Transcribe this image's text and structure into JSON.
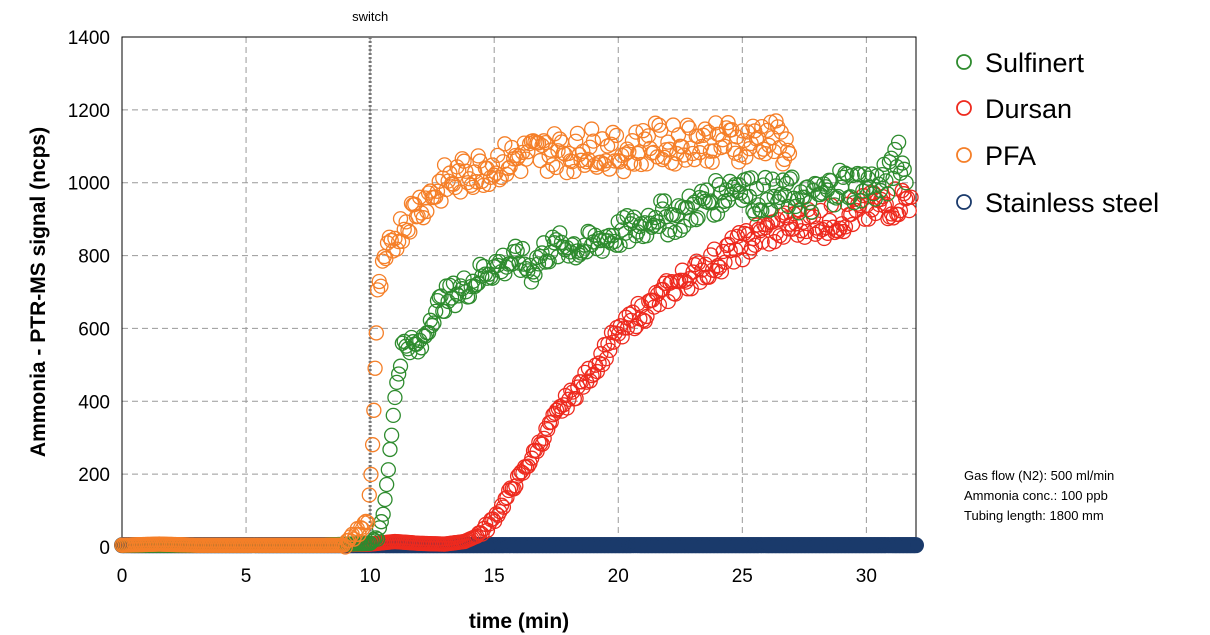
{
  "chart_data": {
    "type": "scatter",
    "xlabel": "time (min)",
    "ylabel": "Ammonia - PTR-MS signal (ncps)",
    "xlim": [
      0,
      32
    ],
    "ylim": [
      0,
      1400
    ],
    "xticks": [
      0,
      5,
      10,
      15,
      20,
      25,
      30
    ],
    "yticks": [
      0,
      200,
      400,
      600,
      800,
      1000,
      1200,
      1400
    ],
    "xtick_labels": [
      "0",
      "5",
      "10",
      "15",
      "20",
      "25",
      "30"
    ],
    "ytick_labels": [
      "0",
      "200",
      "400",
      "600",
      "800",
      "1000",
      "1200",
      "1400"
    ],
    "grid": true,
    "legend_position": "right",
    "vline": {
      "x": 10,
      "label": "switch"
    },
    "annotations": [
      "Gas flow (N2): 500 ml/min",
      "Ammonia conc.: 100 ppb",
      "Tubing length: 1800 mm"
    ],
    "series": [
      {
        "name": "Sulfinert",
        "color": "#2e8b2e",
        "points": [
          [
            0,
            5
          ],
          [
            2,
            5
          ],
          [
            4,
            5
          ],
          [
            6,
            5
          ],
          [
            8,
            5
          ],
          [
            10,
            10
          ],
          [
            10.3,
            30
          ],
          [
            10.6,
            120
          ],
          [
            10.8,
            260
          ],
          [
            11.0,
            420
          ],
          [
            11.3,
            550
          ],
          [
            11.6,
            560
          ],
          [
            12.0,
            540
          ],
          [
            12.5,
            640
          ],
          [
            13.0,
            680
          ],
          [
            13.5,
            700
          ],
          [
            14.0,
            720
          ],
          [
            14.5,
            750
          ],
          [
            15.0,
            770
          ],
          [
            15.5,
            780
          ],
          [
            16.0,
            790
          ],
          [
            16.5,
            760
          ],
          [
            17.0,
            810
          ],
          [
            17.5,
            820
          ],
          [
            18.0,
            830
          ],
          [
            18.5,
            820
          ],
          [
            19.0,
            830
          ],
          [
            19.5,
            850
          ],
          [
            20.0,
            860
          ],
          [
            20.5,
            870
          ],
          [
            21.0,
            880
          ],
          [
            21.5,
            920
          ],
          [
            22.0,
            900
          ],
          [
            22.5,
            910
          ],
          [
            23.0,
            930
          ],
          [
            23.5,
            950
          ],
          [
            24.0,
            960
          ],
          [
            24.5,
            990
          ],
          [
            25.0,
            1000
          ],
          [
            25.5,
            960
          ],
          [
            26.0,
            970
          ],
          [
            26.5,
            960
          ],
          [
            27.0,
            970
          ],
          [
            27.5,
            950
          ],
          [
            28.0,
            960
          ],
          [
            28.5,
            980
          ],
          [
            29.0,
            1000
          ],
          [
            29.5,
            990
          ],
          [
            30.0,
            1000
          ],
          [
            30.5,
            990
          ],
          [
            31.0,
            1020
          ],
          [
            31.3,
            1100
          ],
          [
            31.6,
            1000
          ]
        ]
      },
      {
        "name": "Dursan",
        "color": "#ee2a1e",
        "points": [
          [
            0,
            5
          ],
          [
            2,
            5
          ],
          [
            4,
            5
          ],
          [
            6,
            5
          ],
          [
            8,
            5
          ],
          [
            10,
            8
          ],
          [
            11,
            15
          ],
          [
            12,
            10
          ],
          [
            13,
            8
          ],
          [
            13.8,
            15
          ],
          [
            14.3,
            30
          ],
          [
            14.8,
            60
          ],
          [
            15.3,
            110
          ],
          [
            15.8,
            170
          ],
          [
            16.3,
            220
          ],
          [
            16.8,
            280
          ],
          [
            17.3,
            340
          ],
          [
            17.8,
            390
          ],
          [
            18.3,
            430
          ],
          [
            18.8,
            470
          ],
          [
            19.3,
            520
          ],
          [
            19.8,
            570
          ],
          [
            20.3,
            600
          ],
          [
            20.8,
            640
          ],
          [
            21.3,
            660
          ],
          [
            21.8,
            690
          ],
          [
            22.3,
            720
          ],
          [
            22.8,
            740
          ],
          [
            23.3,
            760
          ],
          [
            23.8,
            780
          ],
          [
            24.3,
            800
          ],
          [
            24.8,
            820
          ],
          [
            25.3,
            840
          ],
          [
            25.8,
            860
          ],
          [
            26.3,
            870
          ],
          [
            26.8,
            880
          ],
          [
            27.3,
            890
          ],
          [
            27.8,
            900
          ],
          [
            28.3,
            890
          ],
          [
            28.8,
            900
          ],
          [
            29.3,
            910
          ],
          [
            29.8,
            920
          ],
          [
            30.3,
            930
          ],
          [
            30.8,
            940
          ],
          [
            31.3,
            950
          ],
          [
            31.8,
            960
          ]
        ]
      },
      {
        "name": "PFA",
        "color": "#f57f28",
        "points": [
          [
            0,
            5
          ],
          [
            1.5,
            8
          ],
          [
            3,
            5
          ],
          [
            5,
            5
          ],
          [
            7,
            5
          ],
          [
            9,
            5
          ],
          [
            9.9,
            70
          ],
          [
            10.1,
            275
          ],
          [
            10.2,
            495
          ],
          [
            10.3,
            680
          ],
          [
            10.5,
            750
          ],
          [
            10.7,
            800
          ],
          [
            11.0,
            850
          ],
          [
            11.3,
            880
          ],
          [
            11.6,
            910
          ],
          [
            12.0,
            940
          ],
          [
            12.5,
            970
          ],
          [
            13.0,
            1000
          ],
          [
            13.5,
            1010
          ],
          [
            14.0,
            1030
          ],
          [
            14.5,
            1040
          ],
          [
            15.0,
            1050
          ],
          [
            15.5,
            1060
          ],
          [
            16.0,
            1070
          ],
          [
            16.5,
            1080
          ],
          [
            17.0,
            1080
          ],
          [
            17.5,
            1090
          ],
          [
            18.0,
            1080
          ],
          [
            18.5,
            1090
          ],
          [
            19.0,
            1100
          ],
          [
            19.5,
            1090
          ],
          [
            20.0,
            1080
          ],
          [
            20.5,
            1090
          ],
          [
            21.0,
            1100
          ],
          [
            21.5,
            1110
          ],
          [
            22.0,
            1100
          ],
          [
            22.5,
            1110
          ],
          [
            23.0,
            1120
          ],
          [
            23.5,
            1110
          ],
          [
            24.0,
            1110
          ],
          [
            24.5,
            1120
          ],
          [
            25.0,
            1110
          ],
          [
            25.5,
            1120
          ],
          [
            26.0,
            1130
          ],
          [
            26.5,
            1110
          ],
          [
            26.9,
            1080
          ]
        ]
      },
      {
        "name": "Stainless steel",
        "color": "#1a3a6b",
        "points": [
          [
            0,
            5
          ],
          [
            1,
            5
          ],
          [
            2,
            5
          ],
          [
            3,
            5
          ],
          [
            4,
            5
          ],
          [
            5,
            5
          ],
          [
            6,
            5
          ],
          [
            7,
            5
          ],
          [
            8,
            5
          ],
          [
            9,
            5
          ],
          [
            10,
            5
          ],
          [
            11,
            5
          ],
          [
            12,
            5
          ],
          [
            13,
            5
          ],
          [
            14,
            5
          ],
          [
            15,
            5
          ],
          [
            16,
            5
          ],
          [
            17,
            5
          ],
          [
            18,
            5
          ],
          [
            19,
            5
          ],
          [
            20,
            5
          ],
          [
            21,
            5
          ],
          [
            22,
            5
          ],
          [
            23,
            5
          ],
          [
            24,
            5
          ],
          [
            25,
            5
          ],
          [
            26,
            5
          ],
          [
            27,
            5
          ],
          [
            28,
            5
          ],
          [
            29,
            5
          ],
          [
            30,
            5
          ],
          [
            31,
            5
          ],
          [
            32,
            5
          ]
        ]
      }
    ]
  }
}
